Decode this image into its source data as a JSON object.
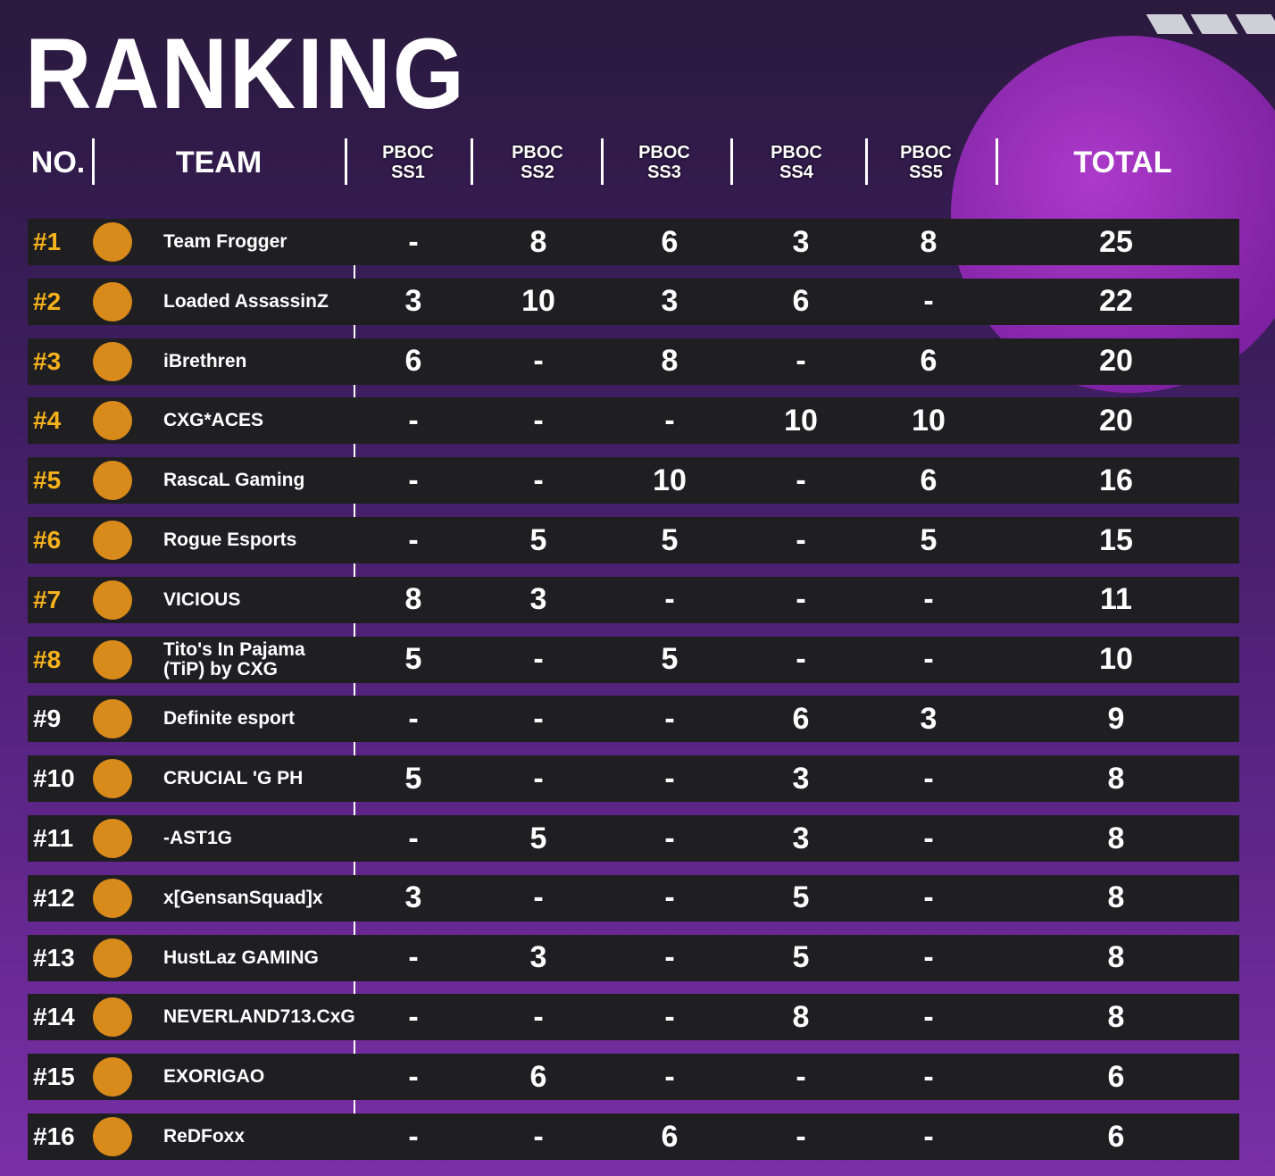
{
  "title": "RANKING",
  "table": {
    "headers": [
      "NO.",
      "TEAM",
      "PBOC SS1",
      "PBOC SS2",
      "PBOC SS3",
      "PBOC SS4",
      "PBOC SS5",
      "TOTAL"
    ],
    "rows": [
      [
        "#1",
        "Team Frogger",
        "-",
        8,
        6,
        3,
        8,
        25
      ],
      [
        "#2",
        "Loaded AssassinZ",
        3,
        10,
        3,
        6,
        "-",
        22
      ],
      [
        "#3",
        "iBrethren",
        6,
        "-",
        8,
        "-",
        6,
        20
      ],
      [
        "#4",
        "CXG*ACES",
        "-",
        "-",
        "-",
        10,
        10,
        20
      ],
      [
        "#5",
        "RascaL Gaming",
        "-",
        "-",
        10,
        "-",
        6,
        16
      ],
      [
        "#6",
        "Rogue Esports",
        "-",
        5,
        5,
        "-",
        5,
        15
      ],
      [
        "#7",
        "VICIOUS",
        8,
        3,
        "-",
        "-",
        "-",
        11
      ],
      [
        "#8",
        "Tito's In Pajama (TiP) by CXG",
        5,
        "-",
        5,
        "-",
        "-",
        10
      ],
      [
        "#9",
        "Definite esport",
        "-",
        "-",
        "-",
        6,
        3,
        9
      ],
      [
        "#10",
        "CRUCIAL 'G PH",
        5,
        "-",
        "-",
        3,
        "-",
        8
      ],
      [
        "#11",
        "-AST1G",
        "-",
        5,
        "-",
        3,
        "-",
        8
      ],
      [
        "#12",
        "x[GensanSquad]x",
        3,
        "-",
        "-",
        5,
        "-",
        8
      ],
      [
        "#13",
        "HustLaz GAMING",
        "-",
        3,
        "-",
        5,
        "-",
        8
      ],
      [
        "#14",
        "NEVERLAND713.CxG",
        "-",
        "-",
        "-",
        8,
        "-",
        8
      ],
      [
        "#15",
        "EXORIGAO",
        "-",
        6,
        "-",
        "-",
        "-",
        6
      ],
      [
        "#16",
        "ReDFoxx",
        "-",
        "-",
        6,
        "-",
        "-",
        6
      ]
    ]
  }
}
